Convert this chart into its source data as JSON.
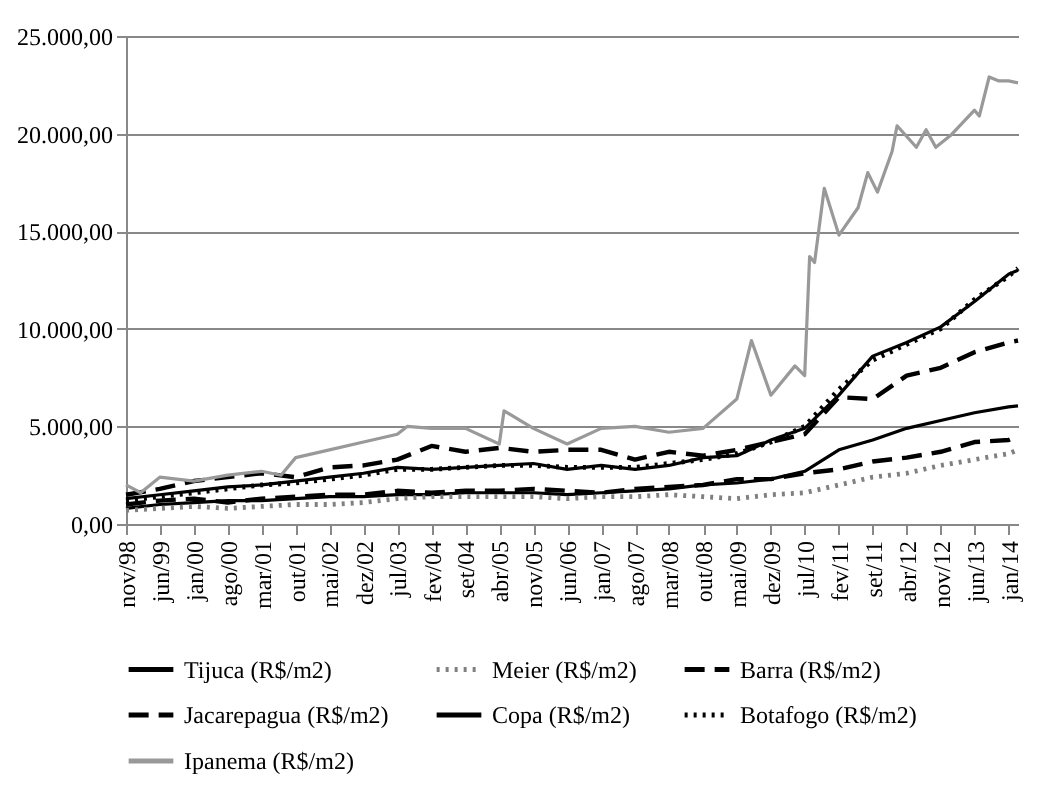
{
  "chart_data": {
    "type": "line",
    "x": [
      "1998-11",
      "1999-06",
      "2000-01",
      "2000-08",
      "2001-03",
      "2001-10",
      "2002-05",
      "2002-12",
      "2003-07",
      "2004-02",
      "2004-09",
      "2005-04",
      "2005-11",
      "2006-06",
      "2007-01",
      "2007-08",
      "2008-03",
      "2008-10",
      "2009-05",
      "2009-12",
      "2010-07",
      "2011-02",
      "2011-09",
      "2012-04",
      "2012-11",
      "2013-06",
      "2014-01",
      "2014-03"
    ],
    "series": [
      {
        "name": "Tijuca (R$/m2)",
        "color": "#000000",
        "line_style": "solid",
        "values": [
          800,
          1000,
          1100,
          1200,
          1200,
          1300,
          1400,
          1400,
          1500,
          1500,
          1600,
          1600,
          1600,
          1500,
          1600,
          1700,
          1800,
          2000,
          2100,
          2300,
          2700,
          3800,
          4300,
          4900,
          5300,
          5700,
          6000,
          6050
        ]
      },
      {
        "name": "Meier (R$/m2)",
        "color": "#808080",
        "line_style": "dotted",
        "values": [
          700,
          800,
          900,
          800,
          900,
          1000,
          1000,
          1100,
          1300,
          1400,
          1400,
          1400,
          1400,
          1300,
          1400,
          1400,
          1500,
          1400,
          1300,
          1500,
          1600,
          2000,
          2400,
          2600,
          3000,
          3300,
          3600,
          3800
        ]
      },
      {
        "name": "Barra (R$/m2)",
        "color": "#000000",
        "line_style": "dashed",
        "values": [
          1500,
          1800,
          2200,
          2400,
          2600,
          2400,
          2900,
          3000,
          3300,
          4000,
          3700,
          3900,
          3700,
          3800,
          3800,
          3300,
          3700,
          3500,
          3800,
          4200,
          4600,
          6500,
          6400,
          7600,
          8000,
          8800,
          9300,
          9400
        ]
      },
      {
        "name": "Jacarepagua (R$/m2)",
        "color": "#000000",
        "line_style": "dashed",
        "values": [
          1000,
          1200,
          1300,
          1100,
          1300,
          1400,
          1500,
          1500,
          1700,
          1600,
          1700,
          1700,
          1800,
          1700,
          1600,
          1800,
          1900,
          2000,
          2300,
          2300,
          2600,
          2800,
          3200,
          3400,
          3700,
          4200,
          4300,
          4500
        ]
      },
      {
        "name": "Copa (R$/m2)",
        "color": "#000000",
        "line_style": "solid",
        "values": [
          1300,
          1500,
          1700,
          1900,
          2000,
          2200,
          2400,
          2600,
          2900,
          2800,
          2900,
          3000,
          3100,
          2800,
          3000,
          2800,
          3000,
          3400,
          3500,
          4300,
          4900,
          6600,
          8600,
          9300,
          10100,
          11400,
          12800,
          13000
        ]
      },
      {
        "name": "Botafogo (R$/m2)",
        "color": "#000000",
        "line_style": "dotted",
        "values": [
          1200,
          1400,
          1600,
          1800,
          2000,
          2100,
          2300,
          2500,
          2800,
          2800,
          2900,
          3000,
          3000,
          2900,
          2900,
          2900,
          3100,
          3300,
          3600,
          4200,
          5000,
          6900,
          8400,
          9200,
          10000,
          11500,
          12700,
          13100
        ]
      },
      {
        "name": "Ipanema (R$/m2)",
        "color": "#999999",
        "line_style": "solid",
        "x": [
          "1998-11",
          "1999-02",
          "1999-06",
          "2000-01",
          "2000-08",
          "2001-03",
          "2001-07",
          "2001-10",
          "2002-05",
          "2002-12",
          "2003-07",
          "2003-09",
          "2004-02",
          "2004-09",
          "2005-04",
          "2005-05",
          "2005-11",
          "2006-06",
          "2007-01",
          "2007-08",
          "2008-03",
          "2008-10",
          "2009-05",
          "2009-08",
          "2009-12",
          "2010-05",
          "2010-07",
          "2010-08",
          "2010-09",
          "2010-11",
          "2011-02",
          "2011-06",
          "2011-08",
          "2011-10",
          "2012-01",
          "2012-02",
          "2012-06",
          "2012-08",
          "2012-10",
          "2013-01",
          "2013-06",
          "2013-07",
          "2013-09",
          "2013-11",
          "2014-01",
          "2014-03"
        ],
        "values": [
          2000,
          1600,
          2400,
          2200,
          2500,
          2700,
          2500,
          3400,
          3800,
          4200,
          4600,
          5000,
          4900,
          4900,
          4100,
          5800,
          4900,
          4100,
          4900,
          5000,
          4700,
          4900,
          6400,
          9400,
          6600,
          8100,
          7600,
          13700,
          13400,
          17200,
          14800,
          16200,
          18000,
          17000,
          19100,
          20400,
          19300,
          20200,
          19300,
          19900,
          21200,
          20900,
          22900,
          22700,
          22700,
          22600
        ]
      }
    ],
    "xlim": [
      "1998-11",
      "2014-03"
    ],
    "xticks": [
      {
        "value": "1998-11",
        "label": "nov/98"
      },
      {
        "value": "1999-06",
        "label": "jun/99"
      },
      {
        "value": "2000-01",
        "label": "jan/00"
      },
      {
        "value": "2000-08",
        "label": "ago/00"
      },
      {
        "value": "2001-03",
        "label": "mar/01"
      },
      {
        "value": "2001-10",
        "label": "out/01"
      },
      {
        "value": "2002-05",
        "label": "mai/02"
      },
      {
        "value": "2002-12",
        "label": "dez/02"
      },
      {
        "value": "2003-07",
        "label": "jul/03"
      },
      {
        "value": "2004-02",
        "label": "fev/04"
      },
      {
        "value": "2004-09",
        "label": "set/04"
      },
      {
        "value": "2005-04",
        "label": "abr/05"
      },
      {
        "value": "2005-11",
        "label": "nov/05"
      },
      {
        "value": "2006-06",
        "label": "jun/06"
      },
      {
        "value": "2007-01",
        "label": "jan/07"
      },
      {
        "value": "2007-08",
        "label": "ago/07"
      },
      {
        "value": "2008-03",
        "label": "mar/08"
      },
      {
        "value": "2008-10",
        "label": "out/08"
      },
      {
        "value": "2009-05",
        "label": "mai/09"
      },
      {
        "value": "2009-12",
        "label": "dez/09"
      },
      {
        "value": "2010-07",
        "label": "jul/10"
      },
      {
        "value": "2011-02",
        "label": "fev/11"
      },
      {
        "value": "2011-09",
        "label": "set/11"
      },
      {
        "value": "2012-04",
        "label": "abr/12"
      },
      {
        "value": "2012-11",
        "label": "nov/12"
      },
      {
        "value": "2013-06",
        "label": "jun/13"
      },
      {
        "value": "2014-01",
        "label": "jan/14"
      }
    ],
    "ylim": [
      0,
      25000
    ],
    "yticks": [
      {
        "value": 0,
        "label": "0,00"
      },
      {
        "value": 5000,
        "label": "5.000,00"
      },
      {
        "value": 10000,
        "label": "10.000,00"
      },
      {
        "value": 15000,
        "label": "15.000,00"
      },
      {
        "value": 20000,
        "label": "20.000,00"
      },
      {
        "value": 25000,
        "label": "25.000,00"
      }
    ],
    "grid": "y",
    "legend": "bottom"
  }
}
